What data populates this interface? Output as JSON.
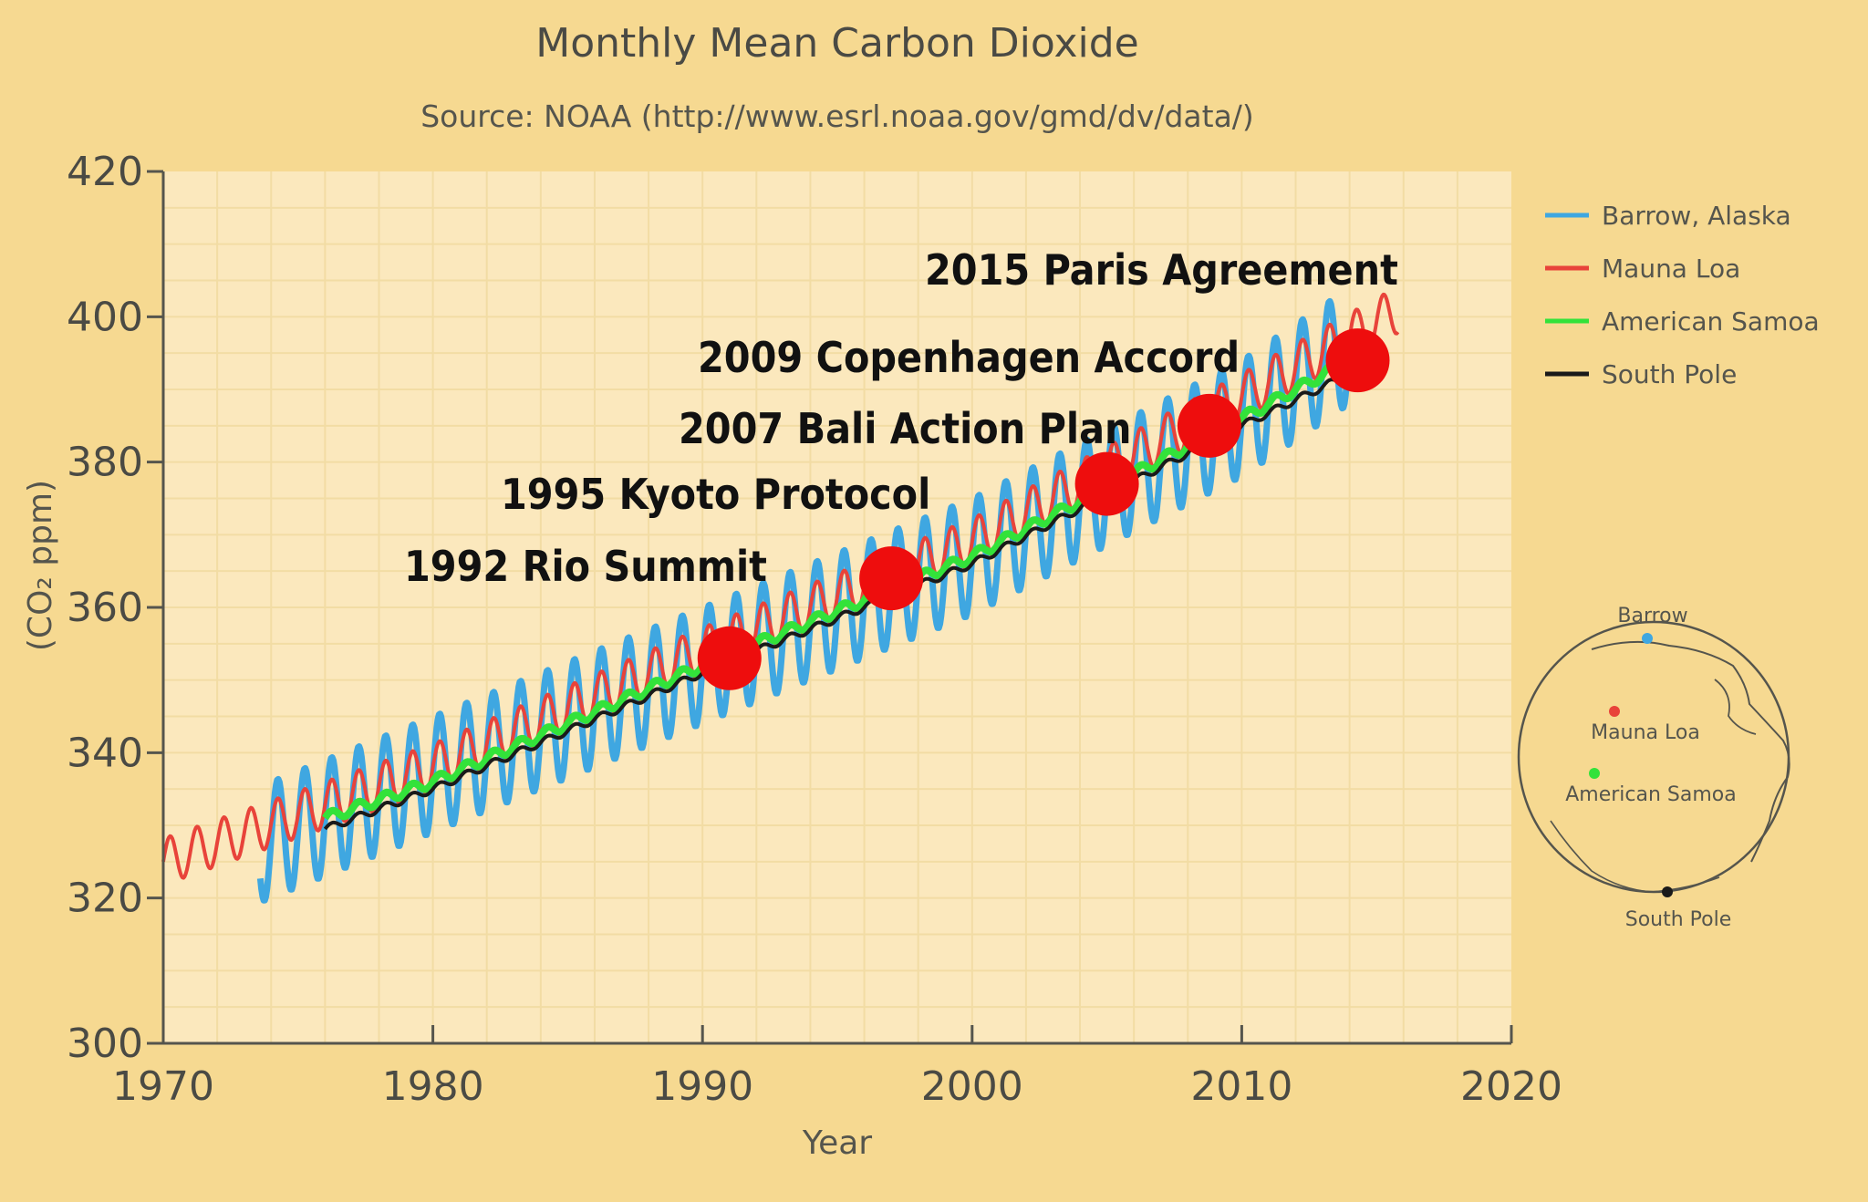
{
  "colors": {
    "background": "#f6d991",
    "plot_background": "#fbe8bd",
    "grid": "#f2dca4",
    "barrow": "#3fa7e1",
    "mauna_loa": "#e8433a",
    "samoa": "#33e23a",
    "south_pole": "#1a1a1a",
    "marker": "#ee0d0d"
  },
  "chart_data": {
    "type": "line",
    "title": "Monthly Mean Carbon Dioxide",
    "subtitle": "Source: NOAA (http://www.esrl.noaa.gov/gmd/dv/data/)",
    "xlabel": "Year",
    "ylabel": "(CO₂ ppm)",
    "xlim": [
      1970,
      2020
    ],
    "ylim": [
      300,
      420
    ],
    "xticks": [
      "1970",
      "1980",
      "1990",
      "2000",
      "2010",
      "2020"
    ],
    "yticks": [
      "300",
      "320",
      "340",
      "360",
      "380",
      "400",
      "420"
    ],
    "grid": true,
    "legend": {
      "placement": "right",
      "entries": [
        {
          "key": "barrow",
          "name": "Barrow, Alaska",
          "color": "#3fa7e1"
        },
        {
          "key": "mauna_loa",
          "name": "Mauna Loa",
          "color": "#e8433a"
        },
        {
          "key": "samoa",
          "name": "American Samoa",
          "color": "#33e23a"
        },
        {
          "key": "south_pole",
          "name": "South Pole",
          "color": "#1a1a1a"
        }
      ]
    },
    "series": [
      {
        "key": "barrow",
        "name": "Barrow, Alaska",
        "start": 1973.6,
        "end": 2013.9,
        "trend": [
          [
            1974,
            328
          ],
          [
            1980,
            337
          ],
          [
            1990,
            352
          ],
          [
            2000,
            367
          ],
          [
            2010,
            386
          ],
          [
            2014,
            396
          ]
        ],
        "amplitude": 8
      },
      {
        "key": "mauna_loa",
        "name": "Mauna Loa",
        "start": 1970.0,
        "end": 2015.8,
        "trend": [
          [
            1970,
            325
          ],
          [
            1980,
            338
          ],
          [
            1990,
            354
          ],
          [
            2000,
            369
          ],
          [
            2010,
            389
          ],
          [
            2015.8,
            401
          ]
        ],
        "amplitude": 3.2
      },
      {
        "key": "samoa",
        "name": "American Samoa",
        "start": 1976.0,
        "end": 2014.5,
        "trend": [
          [
            1976,
            331
          ],
          [
            1980,
            336
          ],
          [
            1990,
            352
          ],
          [
            2000,
            367
          ],
          [
            2010,
            386
          ],
          [
            2014.5,
            395
          ]
        ],
        "amplitude": 0.7
      },
      {
        "key": "south_pole",
        "name": "South Pole",
        "start": 1976.0,
        "end": 2014.5,
        "trend": [
          [
            1976,
            329.5
          ],
          [
            1980,
            335
          ],
          [
            1990,
            351
          ],
          [
            2000,
            366
          ],
          [
            2010,
            385
          ],
          [
            2014.5,
            393
          ]
        ],
        "amplitude": 0.5
      }
    ],
    "annotations": [
      {
        "label": "1992 Rio Summit",
        "x": 1991.0,
        "y": 353
      },
      {
        "label": "1995 Kyoto Protocol",
        "x": 1997.0,
        "y": 364
      },
      {
        "label": "2007 Bali Action Plan",
        "x": 2005.0,
        "y": 377
      },
      {
        "label": "2009 Copenhagen Accord",
        "x": 2008.8,
        "y": 385
      },
      {
        "label": "2015 Paris Agreement",
        "x": 2014.3,
        "y": 394
      }
    ],
    "inset_map": {
      "stations": [
        {
          "name": "Barrow",
          "color": "#3fa7e1"
        },
        {
          "name": "Mauna Loa",
          "color": "#e8433a"
        },
        {
          "name": "American Samoa",
          "color": "#33e23a"
        },
        {
          "name": "South Pole",
          "color": "#1a1a1a"
        }
      ]
    }
  }
}
